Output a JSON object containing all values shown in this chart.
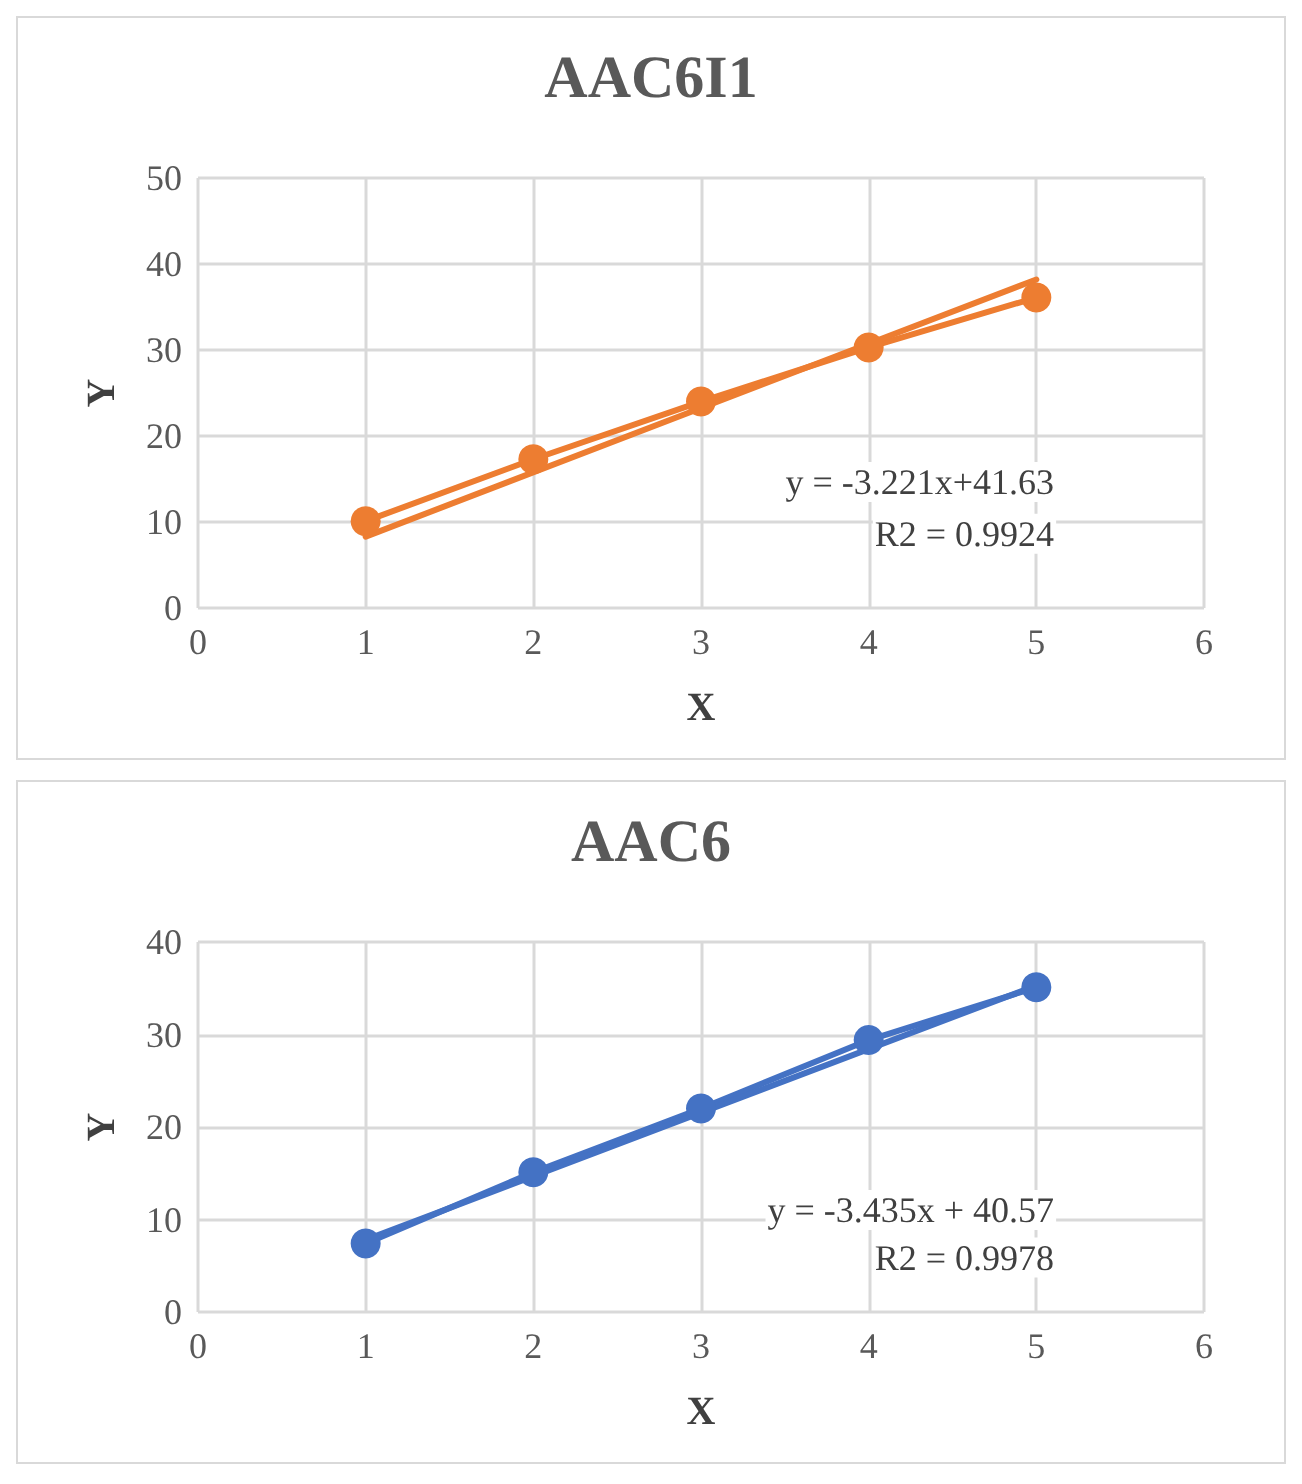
{
  "chart_data": [
    {
      "type": "line",
      "title": "AAC6I1",
      "xlabel": "X",
      "ylabel": "Y",
      "xlim": [
        0,
        6
      ],
      "xticks": [
        0,
        1,
        2,
        3,
        4,
        5,
        6
      ],
      "ylim": [
        0,
        50
      ],
      "yticks": [
        0,
        10,
        20,
        30,
        40,
        50
      ],
      "grid": true,
      "marker": "circle",
      "line_style": "solid",
      "annotations": [
        "y = -3.221x+41.63",
        "R2 = 0.9924"
      ],
      "series": [
        {
          "color": "#ed7d31",
          "x": [
            1,
            2,
            3,
            4,
            5
          ],
          "values": [
            10.1,
            17.3,
            24.0,
            30.3,
            36.1
          ]
        },
        {
          "color": "#ed7d31",
          "x": [
            1,
            5
          ],
          "values": [
            8.3,
            38.2
          ],
          "marker": "none"
        }
      ]
    },
    {
      "type": "line",
      "title": "AAC6",
      "xlabel": "X",
      "ylabel": "Y",
      "xlim": [
        0,
        6
      ],
      "xticks": [
        0,
        1,
        2,
        3,
        4,
        5,
        6
      ],
      "ylim": [
        0,
        40
      ],
      "yticks": [
        0,
        10,
        20,
        30,
        40
      ],
      "grid": true,
      "marker": "circle",
      "line_style": "solid",
      "annotations": [
        "y = -3.435x + 40.57",
        "R2 = 0.9978"
      ],
      "series": [
        {
          "color": "#4472c4",
          "x": [
            1,
            2,
            3,
            4,
            5
          ],
          "values": [
            7.4,
            15.1,
            22.0,
            29.4,
            35.1
          ]
        },
        {
          "color": "#4472c4",
          "x": [
            1,
            5
          ],
          "values": [
            7.8,
            35.3
          ],
          "marker": "none"
        }
      ]
    }
  ]
}
